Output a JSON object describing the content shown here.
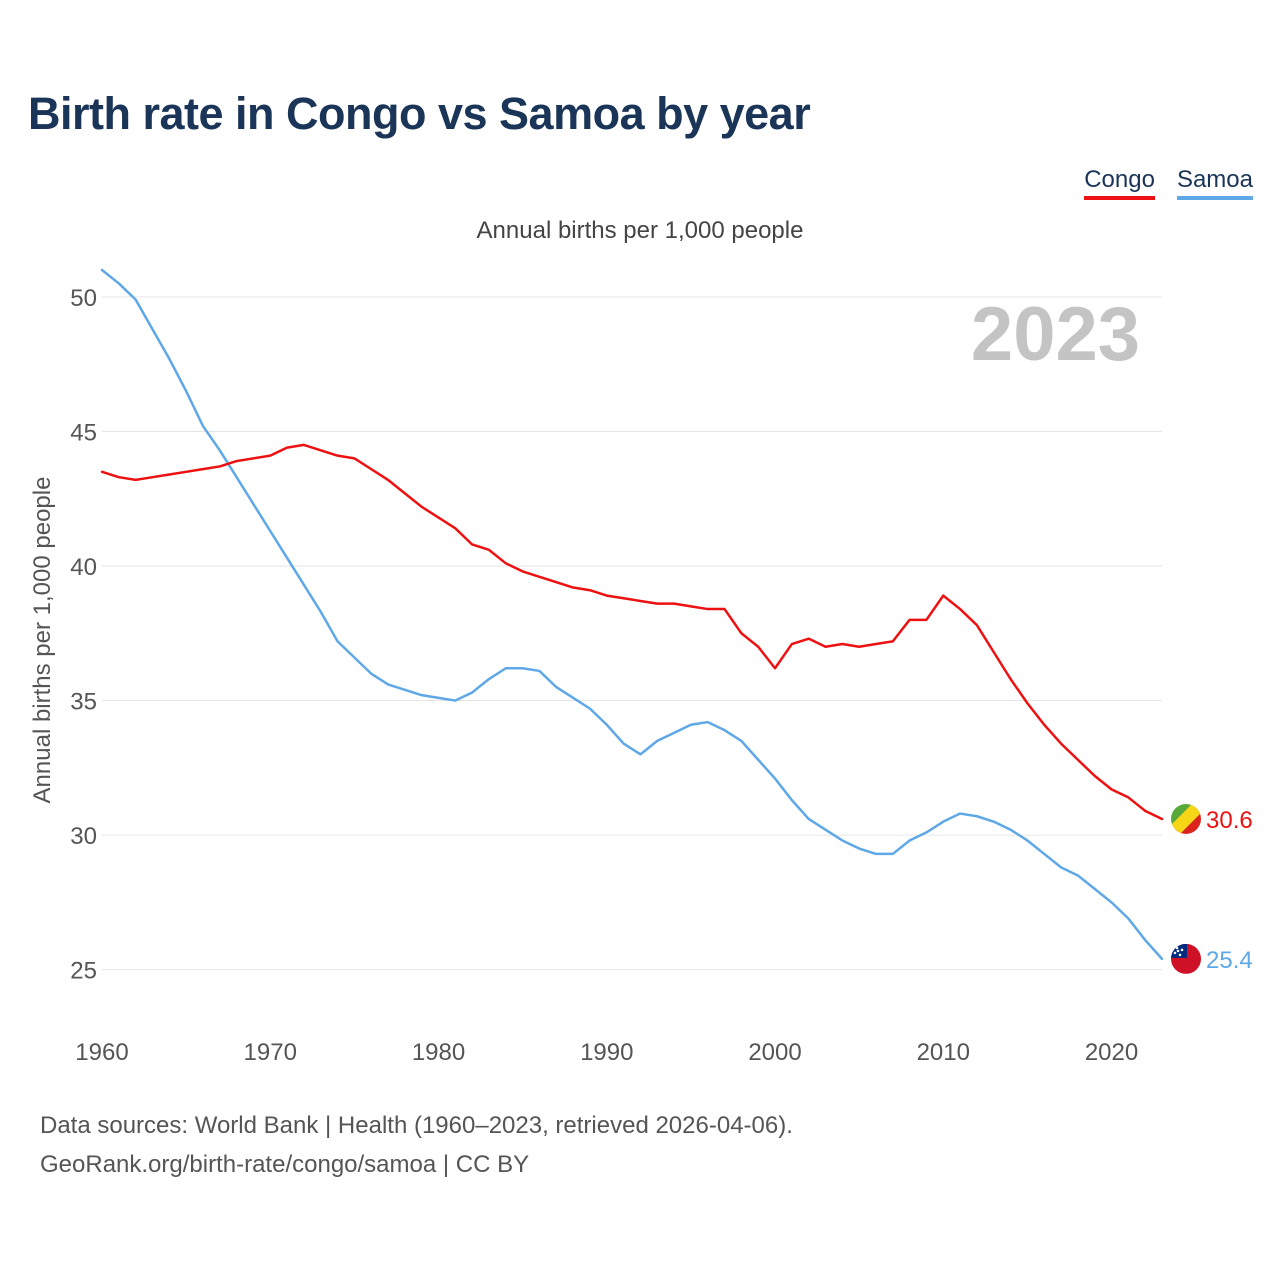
{
  "title": "Birth rate in Congo vs Samoa by year",
  "subtitle": "Annual births per 1,000 people",
  "legend": {
    "congo": "Congo",
    "samoa": "Samoa"
  },
  "year_label": "2023",
  "footer": {
    "line1": "Data sources: World Bank | Health (1960–2023, retrieved 2026-04-06).",
    "line2": "GeoRank.org/birth-rate/congo/samoa | CC BY"
  },
  "colors": {
    "congo": "#ee1111",
    "samoa": "#5fa8e8",
    "title": "#1a3557",
    "grid": "#e6e6e6",
    "year_watermark": "#c4c4c4"
  },
  "chart_data": {
    "type": "line",
    "title": "Birth rate in Congo vs Samoa by year",
    "xlabel": "",
    "ylabel": "Annual births per 1,000 people",
    "xlim": [
      1960,
      2023
    ],
    "ylim": [
      23.5,
      51
    ],
    "x_ticks": [
      "1960",
      "1970",
      "1980",
      "1990",
      "2000",
      "2010",
      "2020"
    ],
    "y_ticks": [
      "25",
      "30",
      "35",
      "40",
      "45",
      "50"
    ],
    "grid": true,
    "legend_position": "top-right",
    "x": [
      1960,
      1961,
      1962,
      1963,
      1964,
      1965,
      1966,
      1967,
      1968,
      1969,
      1970,
      1971,
      1972,
      1973,
      1974,
      1975,
      1976,
      1977,
      1978,
      1979,
      1980,
      1981,
      1982,
      1983,
      1984,
      1985,
      1986,
      1987,
      1988,
      1989,
      1990,
      1991,
      1992,
      1993,
      1994,
      1995,
      1996,
      1997,
      1998,
      1999,
      2000,
      2001,
      2002,
      2003,
      2004,
      2005,
      2006,
      2007,
      2008,
      2009,
      2010,
      2011,
      2012,
      2013,
      2014,
      2015,
      2016,
      2017,
      2018,
      2019,
      2020,
      2021,
      2022,
      2023
    ],
    "series": [
      {
        "name": "Congo",
        "end_label": "30.6",
        "values": [
          43.5,
          43.3,
          43.2,
          43.3,
          43.4,
          43.5,
          43.6,
          43.7,
          43.9,
          44.0,
          44.1,
          44.4,
          44.5,
          44.3,
          44.1,
          44.0,
          43.6,
          43.2,
          42.7,
          42.2,
          41.8,
          41.4,
          40.8,
          40.6,
          40.1,
          39.8,
          39.6,
          39.4,
          39.2,
          39.1,
          38.9,
          38.8,
          38.7,
          38.6,
          38.6,
          38.5,
          38.4,
          38.4,
          37.5,
          37.0,
          36.2,
          37.1,
          37.3,
          37.0,
          37.1,
          37.0,
          37.1,
          37.2,
          38.0,
          38.0,
          38.9,
          38.4,
          37.8,
          36.8,
          35.8,
          34.9,
          34.1,
          33.4,
          32.8,
          32.2,
          31.7,
          31.4,
          30.9,
          30.6
        ]
      },
      {
        "name": "Samoa",
        "end_label": "25.4",
        "values": [
          51.0,
          50.5,
          49.9,
          48.8,
          47.7,
          46.5,
          45.2,
          44.3,
          43.3,
          42.3,
          41.3,
          40.3,
          39.3,
          38.3,
          37.2,
          36.6,
          36.0,
          35.6,
          35.4,
          35.2,
          35.1,
          35.0,
          35.3,
          35.8,
          36.2,
          36.2,
          36.1,
          35.5,
          35.1,
          34.7,
          34.1,
          33.4,
          33.0,
          33.5,
          33.8,
          34.1,
          34.2,
          33.9,
          33.5,
          32.8,
          32.1,
          31.3,
          30.6,
          30.2,
          29.8,
          29.5,
          29.3,
          29.3,
          29.8,
          30.1,
          30.5,
          30.8,
          30.7,
          30.5,
          30.2,
          29.8,
          29.3,
          28.8,
          28.5,
          28.0,
          27.5,
          26.9,
          26.1,
          25.4
        ]
      }
    ]
  }
}
